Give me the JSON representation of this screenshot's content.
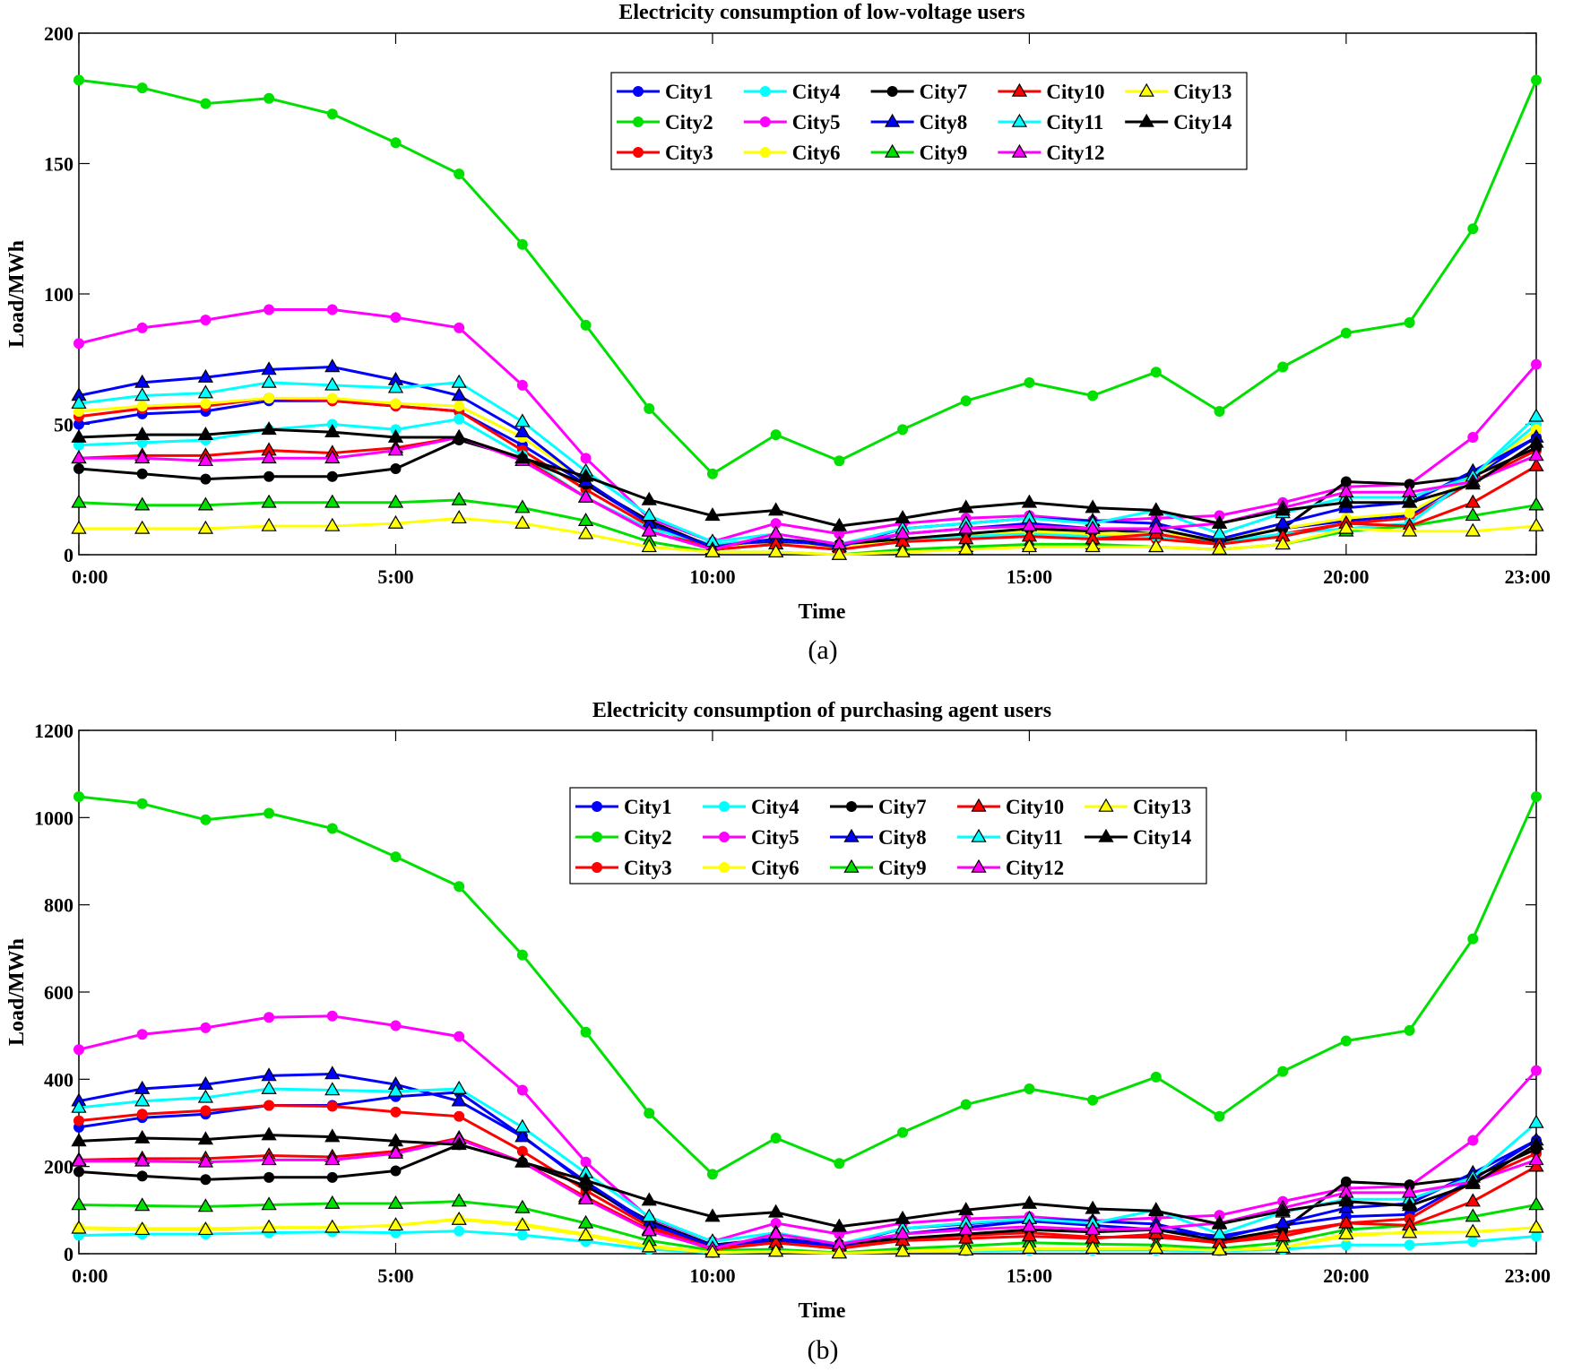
{
  "chart_data": [
    {
      "type": "line",
      "title": "Electricity consumption of low-voltage users",
      "xlabel": "Time",
      "ylabel": "Load/MWh",
      "caption": "(a)",
      "ylim": [
        0,
        200
      ],
      "yticks": [
        0,
        50,
        100,
        150,
        200
      ],
      "xlim": [
        0,
        23
      ],
      "xticks": [
        0,
        5,
        10,
        15,
        20,
        23
      ],
      "xtick_labels": [
        "0:00",
        "5:00",
        "10:00",
        "15:00",
        "20:00",
        "23:00"
      ],
      "legend": "top-center",
      "x": [
        0,
        1,
        2,
        3,
        4,
        5,
        6,
        7,
        8,
        9,
        10,
        11,
        12,
        13,
        14,
        15,
        16,
        17,
        18,
        19,
        20,
        21,
        22,
        23
      ],
      "series": [
        {
          "name": "City1",
          "color": "#0000ff",
          "marker": "circle",
          "values": [
            50,
            54,
            55,
            59,
            59,
            57,
            55,
            42,
            27,
            12,
            2,
            5,
            2,
            8,
            10,
            12,
            10,
            8,
            6,
            10,
            13,
            15,
            30,
            45
          ]
        },
        {
          "name": "City2",
          "color": "#00e000",
          "marker": "circle",
          "values": [
            182,
            179,
            173,
            175,
            169,
            158,
            146,
            119,
            88,
            56,
            31,
            46,
            36,
            48,
            59,
            66,
            61,
            70,
            55,
            72,
            85,
            89,
            125,
            182
          ]
        },
        {
          "name": "City3",
          "color": "#ff0000",
          "marker": "circle",
          "values": [
            53,
            56,
            57,
            60,
            59,
            57,
            55,
            40,
            25,
            11,
            2,
            4,
            2,
            6,
            7,
            8,
            6,
            6,
            4,
            8,
            12,
            14,
            28,
            40
          ]
        },
        {
          "name": "City4",
          "color": "#00ffff",
          "marker": "circle",
          "values": [
            42,
            43,
            44,
            48,
            50,
            48,
            52,
            38,
            22,
            10,
            4,
            6,
            4,
            6,
            7,
            8,
            7,
            7,
            5,
            8,
            10,
            12,
            30,
            50
          ]
        },
        {
          "name": "City5",
          "color": "#ff00ff",
          "marker": "circle",
          "values": [
            81,
            87,
            90,
            94,
            94,
            91,
            87,
            65,
            37,
            14,
            5,
            12,
            8,
            12,
            14,
            15,
            13,
            14,
            15,
            20,
            26,
            27,
            45,
            73
          ]
        },
        {
          "name": "City6",
          "color": "#ffff00",
          "marker": "circle",
          "values": [
            55,
            57,
            58,
            60,
            60,
            58,
            57,
            45,
            28,
            12,
            3,
            4,
            3,
            6,
            8,
            9,
            8,
            8,
            6,
            10,
            14,
            16,
            30,
            48
          ]
        },
        {
          "name": "City7",
          "color": "#000000",
          "marker": "circle",
          "values": [
            33,
            31,
            29,
            30,
            30,
            33,
            44,
            37,
            27,
            13,
            3,
            6,
            4,
            6,
            8,
            10,
            9,
            10,
            5,
            10,
            28,
            27,
            30,
            41
          ]
        },
        {
          "name": "City8",
          "color": "#0000ff",
          "marker": "triangle",
          "values": [
            61,
            66,
            68,
            71,
            72,
            67,
            61,
            47,
            28,
            12,
            3,
            6,
            3,
            10,
            12,
            14,
            13,
            12,
            6,
            12,
            18,
            20,
            32,
            45
          ]
        },
        {
          "name": "City9",
          "color": "#00e000",
          "marker": "triangle",
          "values": [
            20,
            19,
            19,
            20,
            20,
            20,
            21,
            18,
            13,
            5,
            1,
            1,
            0,
            2,
            3,
            4,
            4,
            3,
            2,
            4,
            9,
            11,
            15,
            19
          ]
        },
        {
          "name": "City10",
          "color": "#ff0000",
          "marker": "triangle",
          "values": [
            37,
            38,
            38,
            40,
            39,
            41,
            45,
            37,
            22,
            9,
            2,
            4,
            2,
            5,
            6,
            7,
            6,
            8,
            4,
            7,
            12,
            11,
            20,
            34
          ]
        },
        {
          "name": "City11",
          "color": "#00ffff",
          "marker": "triangle",
          "values": [
            58,
            61,
            62,
            66,
            65,
            64,
            66,
            51,
            32,
            15,
            5,
            8,
            4,
            10,
            12,
            14,
            12,
            17,
            8,
            16,
            22,
            22,
            30,
            53
          ]
        },
        {
          "name": "City12",
          "color": "#ff00ff",
          "marker": "triangle",
          "values": [
            37,
            37,
            36,
            37,
            37,
            40,
            45,
            36,
            22,
            9,
            2,
            8,
            4,
            8,
            10,
            11,
            10,
            10,
            12,
            18,
            24,
            24,
            28,
            38
          ]
        },
        {
          "name": "City13",
          "color": "#ffff00",
          "marker": "triangle",
          "values": [
            10,
            10,
            10,
            11,
            11,
            12,
            14,
            12,
            8,
            3,
            1,
            1,
            0,
            1,
            2,
            3,
            3,
            3,
            2,
            4,
            10,
            9,
            9,
            11
          ]
        },
        {
          "name": "City14",
          "color": "#000000",
          "marker": "triangle",
          "values": [
            45,
            46,
            46,
            48,
            47,
            45,
            45,
            37,
            30,
            21,
            15,
            17,
            11,
            14,
            18,
            20,
            18,
            17,
            12,
            17,
            20,
            20,
            27,
            43
          ]
        }
      ]
    },
    {
      "type": "line",
      "title": "Electricity consumption of purchasing agent users",
      "xlabel": "Time",
      "ylabel": "Load/MWh",
      "caption": "(b)",
      "ylim": [
        0,
        1200
      ],
      "yticks": [
        0,
        200,
        400,
        600,
        800,
        1000,
        1200
      ],
      "xlim": [
        0,
        23
      ],
      "xticks": [
        0,
        5,
        10,
        15,
        20,
        23
      ],
      "xtick_labels": [
        "0:00",
        "5:00",
        "10:00",
        "15:00",
        "20:00",
        "23:00"
      ],
      "legend": "top-center",
      "x": [
        0,
        1,
        2,
        3,
        4,
        5,
        6,
        7,
        8,
        9,
        10,
        11,
        12,
        13,
        14,
        15,
        16,
        17,
        18,
        19,
        20,
        21,
        22,
        23
      ],
      "series": [
        {
          "name": "City1",
          "color": "#0000ff",
          "marker": "circle",
          "values": [
            290,
            312,
            320,
            340,
            340,
            360,
            370,
            270,
            160,
            65,
            15,
            30,
            15,
            45,
            60,
            75,
            65,
            55,
            40,
            65,
            85,
            90,
            170,
            260
          ]
        },
        {
          "name": "City2",
          "color": "#00e000",
          "marker": "circle",
          "values": [
            1048,
            1032,
            995,
            1010,
            975,
            910,
            842,
            685,
            508,
            322,
            182,
            265,
            207,
            278,
            342,
            378,
            352,
            405,
            315,
            418,
            488,
            512,
            722,
            1048
          ]
        },
        {
          "name": "City3",
          "color": "#ff0000",
          "marker": "circle",
          "values": [
            305,
            320,
            328,
            340,
            338,
            325,
            315,
            235,
            145,
            62,
            12,
            25,
            12,
            35,
            42,
            48,
            38,
            38,
            25,
            48,
            70,
            80,
            165,
            230
          ]
        },
        {
          "name": "City4",
          "color": "#00ffff",
          "marker": "circle",
          "values": [
            42,
            45,
            45,
            48,
            50,
            48,
            52,
            43,
            28,
            10,
            2,
            5,
            2,
            5,
            6,
            8,
            8,
            8,
            6,
            10,
            20,
            20,
            28,
            40
          ]
        },
        {
          "name": "City5",
          "color": "#ff00ff",
          "marker": "circle",
          "values": [
            468,
            503,
            518,
            542,
            545,
            523,
            498,
            375,
            210,
            82,
            28,
            70,
            45,
            70,
            80,
            85,
            75,
            82,
            88,
            120,
            150,
            155,
            260,
            420
          ]
        },
        {
          "name": "City6",
          "color": "#ffff00",
          "marker": "circle",
          "values": [
            60,
            58,
            58,
            60,
            60,
            65,
            80,
            68,
            45,
            18,
            4,
            6,
            2,
            6,
            10,
            12,
            12,
            12,
            8,
            14,
            40,
            50,
            50,
            60
          ]
        },
        {
          "name": "City7",
          "color": "#000000",
          "marker": "circle",
          "values": [
            188,
            178,
            170,
            175,
            175,
            190,
            250,
            210,
            155,
            75,
            20,
            35,
            22,
            35,
            45,
            55,
            50,
            55,
            30,
            55,
            165,
            158,
            175,
            240
          ]
        },
        {
          "name": "City8",
          "color": "#0000ff",
          "marker": "triangle",
          "values": [
            350,
            378,
            388,
            408,
            412,
            388,
            350,
            268,
            165,
            70,
            18,
            35,
            18,
            58,
            68,
            80,
            75,
            68,
            35,
            70,
            105,
            115,
            185,
            260
          ]
        },
        {
          "name": "City9",
          "color": "#00e000",
          "marker": "triangle",
          "values": [
            112,
            110,
            108,
            112,
            115,
            115,
            120,
            105,
            70,
            30,
            8,
            10,
            2,
            12,
            18,
            25,
            22,
            20,
            12,
            25,
            55,
            65,
            85,
            112
          ]
        },
        {
          "name": "City10",
          "color": "#ff0000",
          "marker": "triangle",
          "values": [
            215,
            218,
            218,
            225,
            222,
            235,
            265,
            210,
            130,
            55,
            10,
            25,
            12,
            30,
            35,
            40,
            35,
            45,
            25,
            40,
            70,
            65,
            120,
            200
          ]
        },
        {
          "name": "City11",
          "color": "#00ffff",
          "marker": "triangle",
          "values": [
            335,
            350,
            358,
            378,
            375,
            372,
            378,
            290,
            185,
            85,
            28,
            48,
            22,
            58,
            70,
            80,
            70,
            100,
            45,
            95,
            125,
            125,
            175,
            300
          ]
        },
        {
          "name": "City12",
          "color": "#ff00ff",
          "marker": "triangle",
          "values": [
            212,
            212,
            210,
            215,
            215,
            230,
            262,
            210,
            125,
            52,
            12,
            45,
            22,
            45,
            55,
            62,
            55,
            58,
            70,
            105,
            140,
            140,
            165,
            215
          ]
        },
        {
          "name": "City13",
          "color": "#ffff00",
          "marker": "triangle",
          "values": [
            58,
            55,
            55,
            60,
            60,
            65,
            78,
            65,
            42,
            15,
            3,
            5,
            1,
            5,
            8,
            12,
            12,
            12,
            8,
            14,
            45,
            48,
            50,
            60
          ]
        },
        {
          "name": "City14",
          "color": "#000000",
          "marker": "triangle",
          "values": [
            258,
            265,
            262,
            272,
            268,
            258,
            250,
            210,
            168,
            122,
            85,
            95,
            62,
            80,
            100,
            115,
            103,
            98,
            68,
            98,
            120,
            110,
            160,
            250
          ]
        }
      ]
    }
  ]
}
